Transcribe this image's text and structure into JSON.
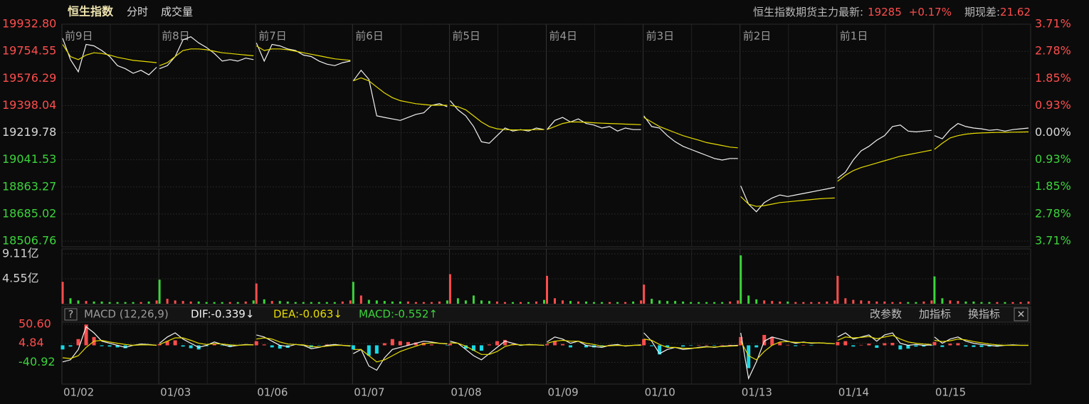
{
  "header": {
    "title": "恒生指数",
    "tabs": [
      "分时",
      "成交量"
    ],
    "futures_label": "恒生指数期货主力最新:",
    "futures_price": "19285",
    "futures_change": "+0.17%",
    "basis_label": "期现差:",
    "basis_value": "21.62"
  },
  "chart_data": [
    {
      "type": "line",
      "categories": [
        "01/02",
        "01/03",
        "01/06",
        "01/07",
        "01/08",
        "01/09",
        "01/10",
        "01/13",
        "01/14",
        "01/15"
      ],
      "day_labels": [
        "前9日",
        "前8日",
        "前7日",
        "前6日",
        "前5日",
        "前4日",
        "前3日",
        "前2日",
        "前1日",
        null
      ],
      "series": [
        {
          "color": "#f2f2f2",
          "values": [
            [
              19840,
              19700,
              19620,
              19800,
              19790,
              19760,
              19720,
              19660,
              19640,
              19610,
              19630,
              19600,
              19650
            ],
            [
              19640,
              19660,
              19720,
              19830,
              19850,
              19810,
              19780,
              19740,
              19690,
              19700,
              19690,
              19710,
              19700
            ],
            [
              19810,
              19690,
              19800,
              19790,
              19770,
              19760,
              19730,
              19720,
              19690,
              19670,
              19660,
              19680,
              19690
            ],
            [
              19560,
              19630,
              19570,
              19330,
              19320,
              19310,
              19300,
              19320,
              19340,
              19350,
              19400,
              19410,
              19390
            ],
            [
              19430,
              19370,
              19330,
              19260,
              19160,
              19150,
              19200,
              19250,
              19230,
              19240,
              19230,
              19250,
              19240
            ],
            [
              19240,
              19300,
              19320,
              19290,
              19310,
              19280,
              19270,
              19250,
              19260,
              19230,
              19250,
              19240,
              19240
            ],
            [
              19330,
              19260,
              19250,
              19200,
              19160,
              19130,
              19110,
              19090,
              19070,
              19050,
              19040,
              19050,
              19050
            ],
            [
              18870,
              18750,
              18700,
              18760,
              18790,
              18810,
              18800,
              18810,
              18820,
              18830,
              18840,
              18850,
              18860
            ],
            [
              18920,
              18960,
              19040,
              19100,
              19130,
              19170,
              19200,
              19260,
              19270,
              19230,
              19225,
              19230,
              19235
            ],
            [
              19200,
              19180,
              19240,
              19280,
              19260,
              19250,
              19245,
              19235,
              19240,
              19230,
              19240,
              19245,
              19250
            ]
          ]
        },
        {
          "color": "#e6dc00",
          "values": [
            [
              19800,
              19720,
              19700,
              19730,
              19745,
              19740,
              19730,
              19715,
              19705,
              19695,
              19690,
              19685,
              19680
            ],
            [
              19660,
              19680,
              19720,
              19760,
              19770,
              19770,
              19765,
              19755,
              19745,
              19740,
              19735,
              19730,
              19725
            ],
            [
              19790,
              19760,
              19770,
              19770,
              19765,
              19755,
              19745,
              19735,
              19725,
              19715,
              19705,
              19700,
              19695
            ],
            [
              19560,
              19580,
              19560,
              19520,
              19480,
              19450,
              19430,
              19420,
              19410,
              19405,
              19400,
              19400,
              19400
            ],
            [
              19400,
              19390,
              19370,
              19330,
              19290,
              19260,
              19245,
              19240,
              19238,
              19238,
              19238,
              19240,
              19240
            ],
            [
              19240,
              19260,
              19280,
              19290,
              19290,
              19288,
              19285,
              19282,
              19280,
              19278,
              19276,
              19274,
              19272
            ],
            [
              19320,
              19290,
              19260,
              19240,
              19220,
              19200,
              19185,
              19170,
              19155,
              19145,
              19135,
              19125,
              19120
            ],
            [
              18800,
              18750,
              18735,
              18740,
              18750,
              18760,
              18765,
              18770,
              18775,
              18780,
              18785,
              18788,
              18790
            ],
            [
              18900,
              18940,
              18970,
              18990,
              19005,
              19020,
              19035,
              19050,
              19065,
              19075,
              19085,
              19095,
              19105
            ],
            [
              19110,
              19150,
              19185,
              19200,
              19210,
              19215,
              19218,
              19220,
              19221,
              19222,
              19223,
              19224,
              19225
            ]
          ]
        }
      ],
      "ylim": [
        18506.76,
        19932.8
      ],
      "yticks": [
        {
          "value": 19932.8,
          "label": "19932.80"
        },
        19754.55,
        19576.29,
        19398.04,
        19219.78,
        19041.53,
        18863.27,
        18685.02,
        18506.76
      ],
      "y2lim": [
        -3.71,
        3.71
      ],
      "y2ticks": [
        {
          "value": 3.71,
          "label": "3.71%"
        },
        {
          "value": 2.78,
          "label": "2.78%"
        },
        {
          "value": 1.85,
          "label": "1.85%"
        },
        {
          "value": 0.93,
          "label": "0.93%"
        },
        {
          "value": 0,
          "label": "0.00%"
        },
        {
          "value": -0.93,
          "label": "0.93%"
        },
        {
          "value": -1.85,
          "label": "1.85%"
        },
        {
          "value": -2.78,
          "label": "2.78%"
        },
        {
          "value": -3.71,
          "label": "3.71%"
        }
      ],
      "up_color": "#ff4d4d",
      "down_color": "#3bd43b",
      "flat_color": "#d8d8d8",
      "grid": true
    },
    {
      "type": "bar",
      "values": [
        [
          4.0,
          1.0,
          0.6,
          0.5,
          0.4,
          0.4,
          0.3,
          0.3,
          0.3,
          0.3,
          0.3,
          0.4,
          0.6
        ],
        [
          4.4,
          0.9,
          0.6,
          0.5,
          0.4,
          0.4,
          0.3,
          0.3,
          0.3,
          0.3,
          0.3,
          0.4,
          0.6
        ],
        [
          3.7,
          0.8,
          0.5,
          0.5,
          0.4,
          0.3,
          0.3,
          0.3,
          0.3,
          0.3,
          0.3,
          0.4,
          0.6
        ],
        [
          4.0,
          1.5,
          0.7,
          0.6,
          0.5,
          0.4,
          0.4,
          0.4,
          0.3,
          0.3,
          0.3,
          0.4,
          0.6
        ],
        [
          5.4,
          1.0,
          0.6,
          1.5,
          0.6,
          0.5,
          0.4,
          0.3,
          0.3,
          0.3,
          0.3,
          0.4,
          0.7
        ],
        [
          5.1,
          1.0,
          0.6,
          0.5,
          0.4,
          0.4,
          0.3,
          0.3,
          0.3,
          0.3,
          0.3,
          0.4,
          0.6
        ],
        [
          3.5,
          0.9,
          0.6,
          0.5,
          0.5,
          0.4,
          0.3,
          0.3,
          0.3,
          0.3,
          0.3,
          0.4,
          0.6
        ],
        [
          8.85,
          1.5,
          0.8,
          0.6,
          0.5,
          0.4,
          0.4,
          0.3,
          0.3,
          0.3,
          0.3,
          0.4,
          0.6
        ],
        [
          5.1,
          1.0,
          0.7,
          0.6,
          0.5,
          0.4,
          0.4,
          0.3,
          0.3,
          0.3,
          0.3,
          0.4,
          0.6
        ],
        [
          5.0,
          1.0,
          0.6,
          0.5,
          0.4,
          0.4,
          0.3,
          0.3,
          0.3,
          0.3,
          0.3,
          0.3,
          0.4
        ]
      ],
      "ylim": [
        0,
        9.11
      ],
      "yticks": [
        {
          "value": 9.11,
          "label": "9.11亿"
        },
        {
          "value": 4.55,
          "label": "4.55亿"
        }
      ]
    },
    {
      "type": "macd",
      "help": "?",
      "indicator": "MACD (12,26,9)",
      "legend": [
        {
          "text": "DIF:-0.339↓",
          "color": "#f2f2f2"
        },
        {
          "text": "DEA:-0.063↓",
          "color": "#e6dc00"
        },
        {
          "text": "MACD:-0.552↑",
          "color": "#3bd43b"
        }
      ],
      "buttons": [
        "改参数",
        "加指标",
        "换指标"
      ],
      "close": "✕",
      "series": [
        {
          "color": "#f2f2f2",
          "values": [
            [
              -40,
              -35,
              -10,
              45,
              30,
              10,
              5,
              0,
              -5,
              0,
              3,
              2,
              0
            ],
            [
              5,
              20,
              30,
              15,
              5,
              -5,
              0,
              8,
              2,
              -3,
              0,
              2,
              1
            ],
            [
              25,
              20,
              10,
              0,
              -3,
              2,
              0,
              -8,
              -5,
              0,
              2,
              0,
              -2
            ],
            [
              -20,
              -10,
              -50,
              -60,
              -30,
              -10,
              -5,
              0,
              5,
              10,
              8,
              5,
              3
            ],
            [
              10,
              5,
              -10,
              -25,
              -35,
              -20,
              -5,
              10,
              5,
              0,
              2,
              1,
              0
            ],
            [
              8,
              20,
              15,
              5,
              10,
              0,
              -3,
              -5,
              0,
              2,
              -2,
              0,
              1
            ],
            [
              30,
              10,
              -20,
              -10,
              -5,
              -10,
              -8,
              -5,
              -3,
              -5,
              -2,
              -1,
              0
            ],
            [
              30,
              -80,
              -40,
              10,
              20,
              15,
              10,
              5,
              8,
              5,
              6,
              5,
              4
            ],
            [
              20,
              30,
              15,
              20,
              25,
              10,
              25,
              30,
              5,
              0,
              2,
              0,
              1
            ],
            [
              20,
              5,
              15,
              20,
              10,
              5,
              2,
              0,
              -2,
              0,
              1,
              0,
              0
            ]
          ]
        },
        {
          "color": "#e6dc00",
          "values": [
            [
              -30,
              -32,
              -25,
              -5,
              10,
              12,
              8,
              5,
              2,
              0,
              1,
              1,
              0
            ],
            [
              2,
              10,
              18,
              18,
              12,
              5,
              2,
              4,
              3,
              1,
              0,
              1,
              1
            ],
            [
              15,
              18,
              15,
              8,
              3,
              2,
              1,
              -3,
              -4,
              -2,
              0,
              0,
              -1
            ],
            [
              -10,
              -10,
              -25,
              -40,
              -35,
              -25,
              -15,
              -8,
              -2,
              4,
              6,
              5,
              4
            ],
            [
              6,
              5,
              -2,
              -12,
              -22,
              -22,
              -15,
              -3,
              2,
              1,
              1,
              1,
              0
            ],
            [
              5,
              10,
              12,
              10,
              10,
              5,
              2,
              -2,
              -1,
              0,
              -1,
              0,
              0
            ],
            [
              15,
              12,
              2,
              -5,
              -5,
              -7,
              -7,
              -6,
              -4,
              -4,
              -3,
              -2,
              -1
            ],
            [
              10,
              -25,
              -35,
              -15,
              0,
              8,
              9,
              7,
              7,
              6,
              6,
              5,
              4
            ],
            [
              12,
              20,
              18,
              19,
              21,
              16,
              20,
              24,
              15,
              8,
              5,
              3,
              2
            ],
            [
              12,
              9,
              11,
              15,
              13,
              9,
              6,
              3,
              1,
              0,
              0,
              0,
              0
            ]
          ]
        }
      ],
      "histogram": {
        "up_color": "#ff4d4d",
        "down_color": "#19d9e6",
        "values": [
          [
            -10,
            -3,
            15,
            50,
            20,
            -2,
            -3,
            -5,
            -7,
            0,
            2,
            1,
            0
          ],
          [
            3,
            10,
            12,
            -3,
            -7,
            -10,
            -2,
            4,
            -1,
            -4,
            0,
            1,
            0
          ],
          [
            10,
            2,
            -5,
            -8,
            -6,
            0,
            -1,
            -5,
            -1,
            2,
            2,
            0,
            -1
          ],
          [
            -10,
            0,
            -25,
            -20,
            5,
            15,
            10,
            8,
            7,
            6,
            2,
            0,
            -1
          ],
          [
            4,
            0,
            -8,
            -13,
            -13,
            2,
            10,
            13,
            3,
            -1,
            1,
            0,
            0
          ],
          [
            3,
            10,
            3,
            -5,
            0,
            -5,
            -5,
            -3,
            1,
            2,
            -1,
            0,
            1
          ],
          [
            15,
            -2,
            -22,
            -5,
            0,
            -3,
            -1,
            1,
            1,
            -1,
            1,
            1,
            1
          ],
          [
            20,
            -55,
            -5,
            25,
            20,
            7,
            1,
            -2,
            1,
            -1,
            0,
            0,
            0
          ],
          [
            8,
            10,
            -3,
            1,
            4,
            -6,
            5,
            6,
            -10,
            -8,
            -3,
            -3,
            -1
          ],
          [
            8,
            -4,
            4,
            5,
            -3,
            -4,
            -4,
            -3,
            -3,
            0,
            1,
            0,
            0
          ]
        ]
      },
      "ylim": [
        -93.5,
        52.3
      ],
      "yticks": [
        {
          "value": 50.6,
          "label": "50.60"
        },
        4.84,
        -40.92
      ]
    }
  ]
}
